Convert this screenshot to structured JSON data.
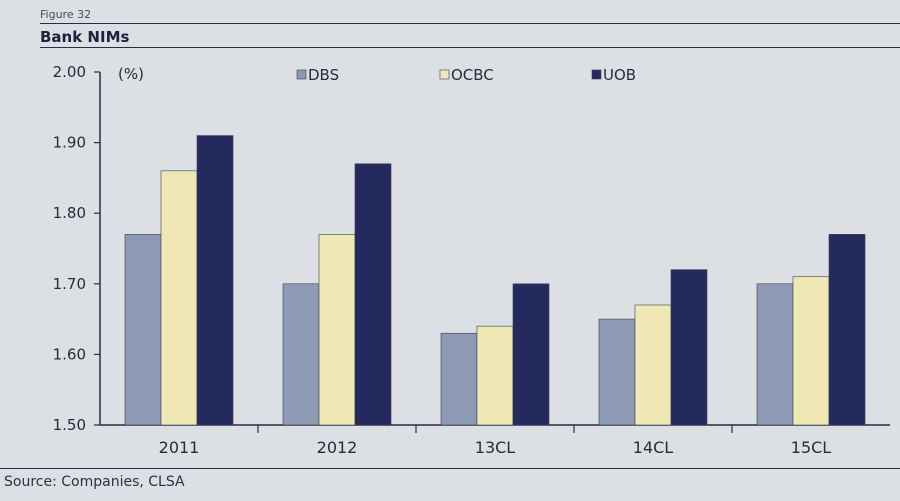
{
  "figure_label": "Figure 32",
  "source": "Source: Companies, CLSA",
  "chart_data": {
    "type": "bar",
    "title": "Bank NIMs",
    "ylabel": "(%)",
    "xlabel": "",
    "categories": [
      "2011",
      "2012",
      "13CL",
      "14CL",
      "15CL"
    ],
    "series": [
      {
        "name": "DBS",
        "color": "#8e9ab3",
        "values": [
          1.77,
          1.7,
          1.63,
          1.65,
          1.7
        ]
      },
      {
        "name": "OCBC",
        "color": "#f0e8b4",
        "values": [
          1.86,
          1.77,
          1.64,
          1.67,
          1.71
        ]
      },
      {
        "name": "UOB",
        "color": "#252a5e",
        "values": [
          1.91,
          1.87,
          1.7,
          1.72,
          1.77
        ]
      }
    ],
    "ylim": [
      1.5,
      2.0
    ],
    "yticks": [
      "1.50",
      "1.60",
      "1.70",
      "1.80",
      "1.90",
      "2.00"
    ],
    "legend_position": "top"
  }
}
